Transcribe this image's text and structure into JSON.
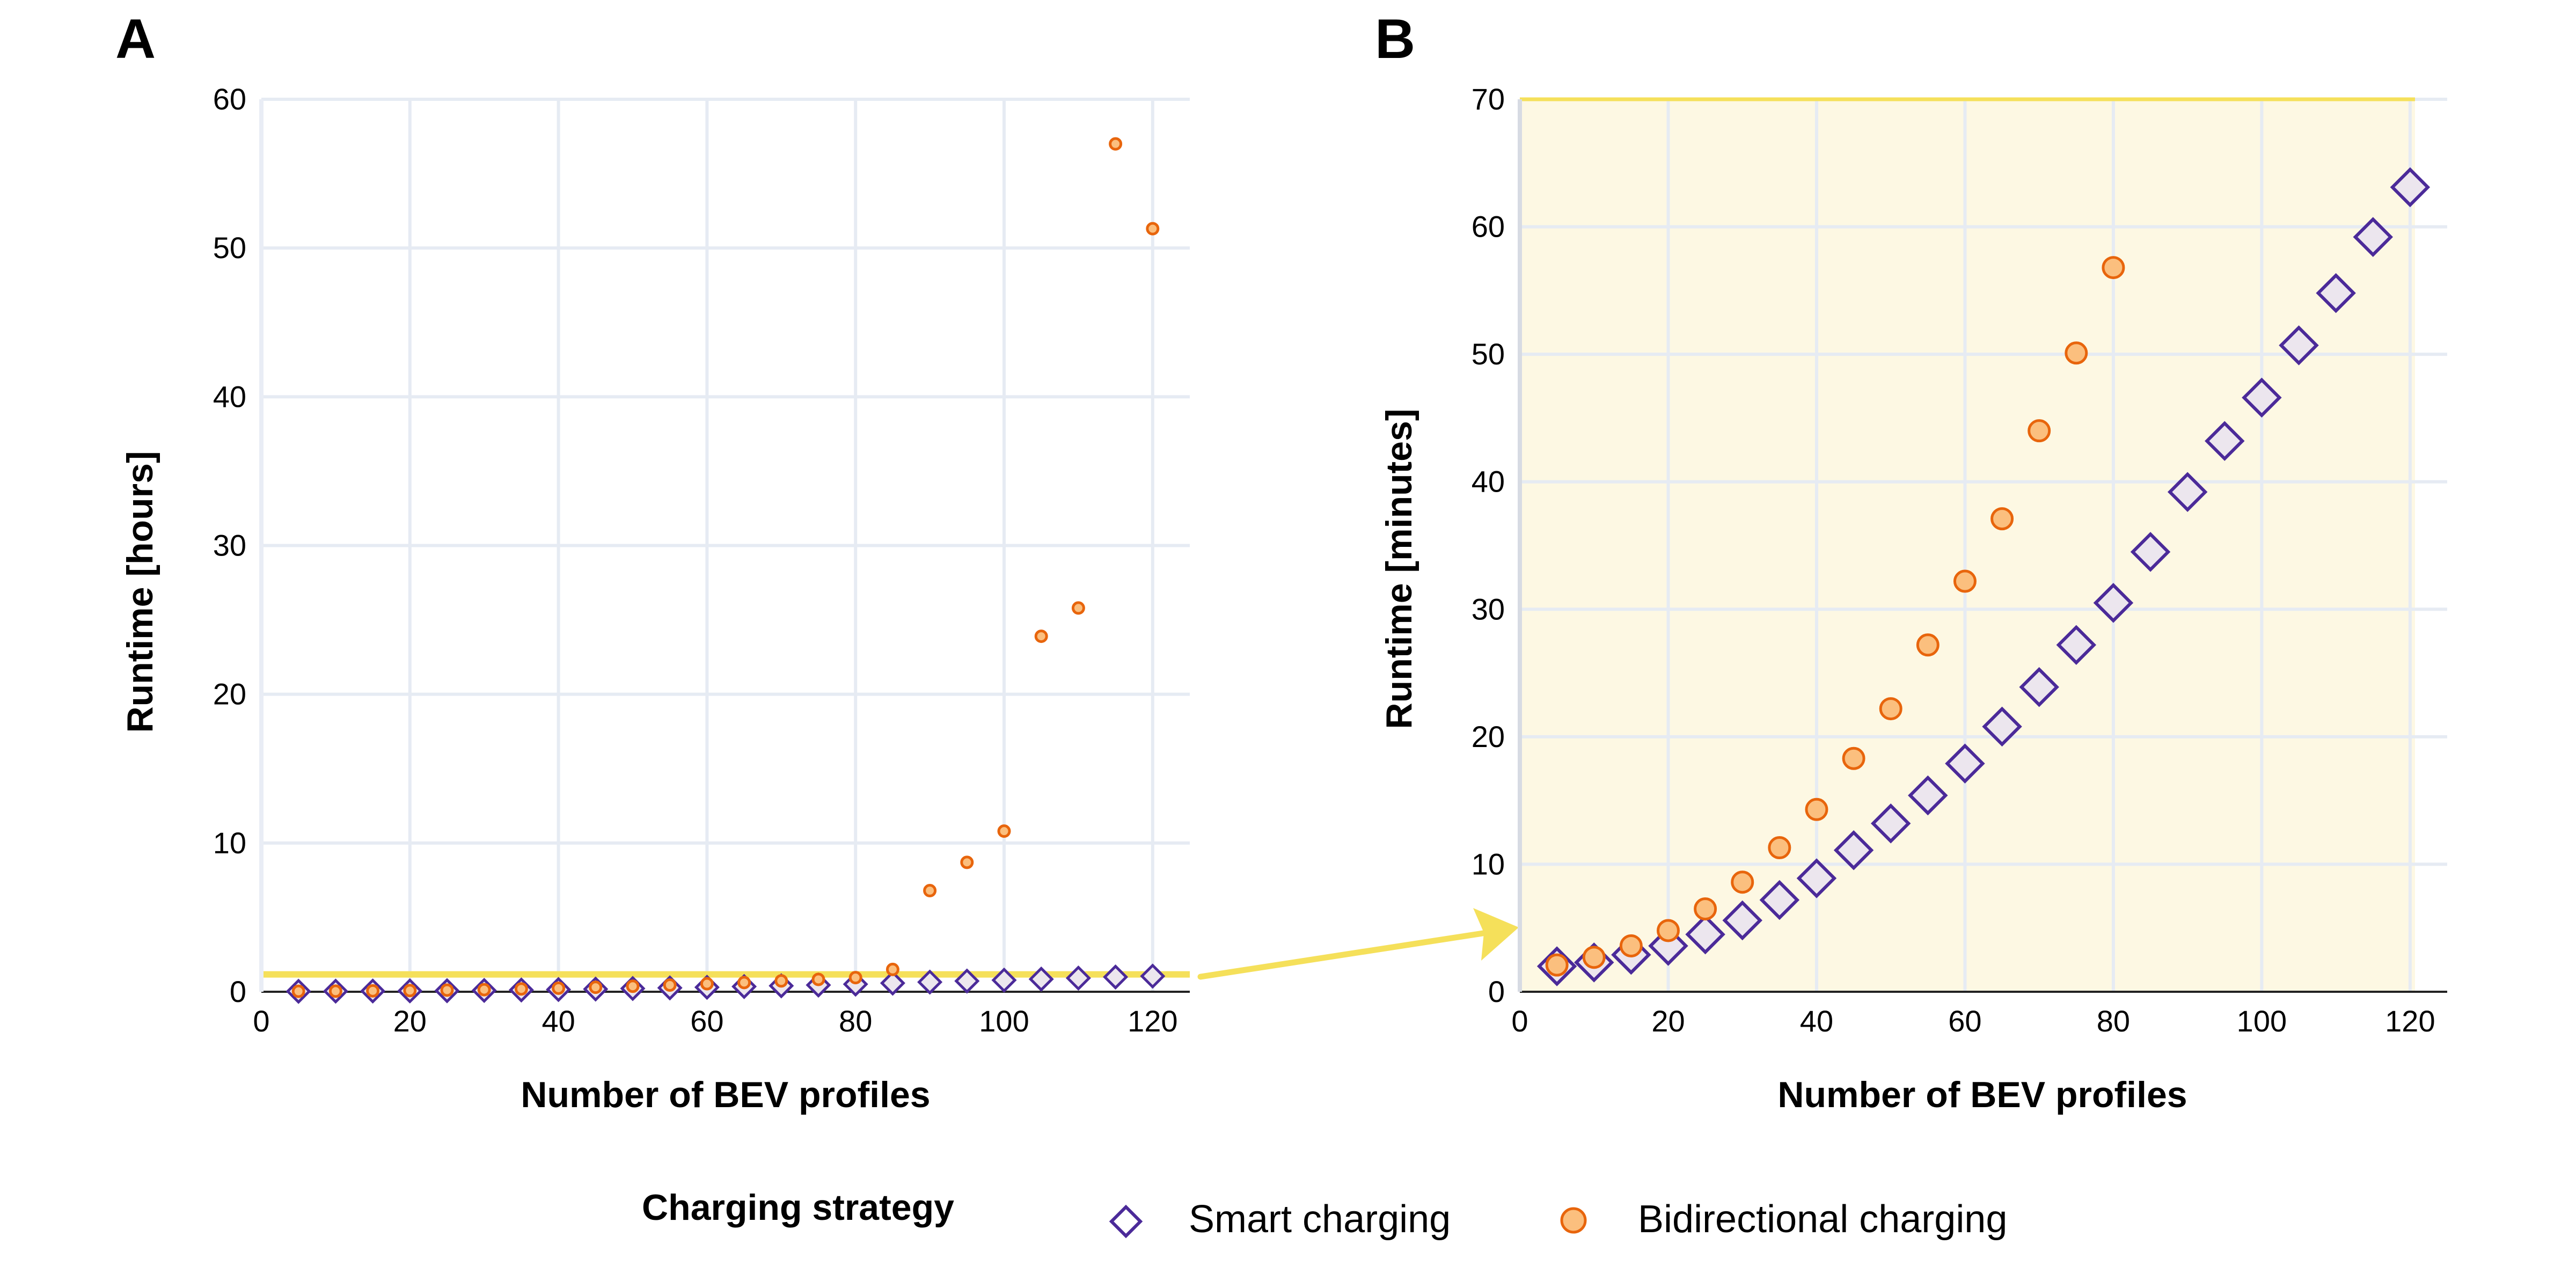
{
  "colors": {
    "smart_fill": "#ece6ee",
    "smart_stroke": "#4b2a99",
    "bidir_fill": "#fbbf7e",
    "bidir_stroke": "#e8650c",
    "highlight": "#f5e05a",
    "panel_bg_b": "#fdf8e3",
    "grid": "#e6ebf3"
  },
  "legend": {
    "title": "Charging strategy",
    "items": [
      {
        "label": "Smart charging",
        "marker": "diamond"
      },
      {
        "label": "Bidirectional charging",
        "marker": "circle"
      }
    ]
  },
  "chart_data": [
    {
      "panel": "A",
      "type": "scatter",
      "xlabel": "Number of BEV profiles",
      "ylabel": "Runtime [hours]",
      "xlim": [
        0,
        125
      ],
      "ylim": [
        0,
        60
      ],
      "xticks": [
        0,
        20,
        40,
        60,
        80,
        100,
        120
      ],
      "yticks": [
        0,
        10,
        20,
        30,
        40,
        50,
        60
      ],
      "zoom_band": [
        0,
        1.1667
      ],
      "series": [
        {
          "name": "Smart charging",
          "x": [
            5,
            10,
            15,
            20,
            25,
            30,
            35,
            40,
            45,
            50,
            55,
            60,
            65,
            70,
            75,
            80,
            85,
            90,
            95,
            100,
            105,
            110,
            115,
            120
          ],
          "y": [
            0.03,
            0.04,
            0.05,
            0.06,
            0.07,
            0.09,
            0.12,
            0.15,
            0.18,
            0.22,
            0.26,
            0.3,
            0.35,
            0.4,
            0.45,
            0.51,
            0.58,
            0.65,
            0.72,
            0.78,
            0.85,
            0.92,
            0.99,
            1.05
          ]
        },
        {
          "name": "Bidirectional charging",
          "x": [
            5,
            10,
            15,
            20,
            25,
            30,
            35,
            40,
            45,
            50,
            55,
            60,
            65,
            70,
            75,
            80,
            85,
            90,
            95,
            100,
            105,
            110,
            115,
            120
          ],
          "y": [
            0.03,
            0.04,
            0.06,
            0.08,
            0.11,
            0.14,
            0.19,
            0.24,
            0.3,
            0.37,
            0.45,
            0.54,
            0.62,
            0.73,
            0.83,
            0.95,
            1.5,
            6.8,
            8.7,
            10.8,
            23.9,
            25.8,
            57,
            51.3
          ]
        }
      ]
    },
    {
      "panel": "B",
      "type": "scatter",
      "xlabel": "Number of BEV profiles",
      "ylabel": "Runtime [minutes]",
      "xlim": [
        0,
        125
      ],
      "ylim": [
        0,
        70
      ],
      "xticks": [
        0,
        20,
        40,
        60,
        80,
        100,
        120
      ],
      "yticks": [
        0,
        10,
        20,
        30,
        40,
        50,
        60,
        70
      ],
      "series": [
        {
          "name": "Smart charging",
          "x": [
            5,
            10,
            15,
            20,
            25,
            30,
            35,
            40,
            45,
            50,
            55,
            60,
            65,
            70,
            75,
            80,
            85,
            90,
            95,
            100,
            105,
            110,
            115,
            120
          ],
          "y": [
            2,
            2.3,
            2.9,
            3.6,
            4.5,
            5.6,
            7.2,
            8.9,
            11.1,
            13.2,
            15.4,
            17.9,
            20.8,
            23.9,
            27.2,
            30.5,
            34.5,
            39.2,
            43.2,
            46.6,
            50.7,
            54.8,
            59.2,
            63.1
          ]
        },
        {
          "name": "Bidirectional charging",
          "x": [
            5,
            10,
            15,
            20,
            25,
            30,
            35,
            40,
            45,
            50,
            55,
            60,
            65,
            70,
            75,
            80
          ],
          "y": [
            2.1,
            2.7,
            3.6,
            4.8,
            6.5,
            8.6,
            11.3,
            14.3,
            18.3,
            22.2,
            27.2,
            32.2,
            37.1,
            44,
            50.1,
            56.8
          ]
        }
      ]
    }
  ]
}
